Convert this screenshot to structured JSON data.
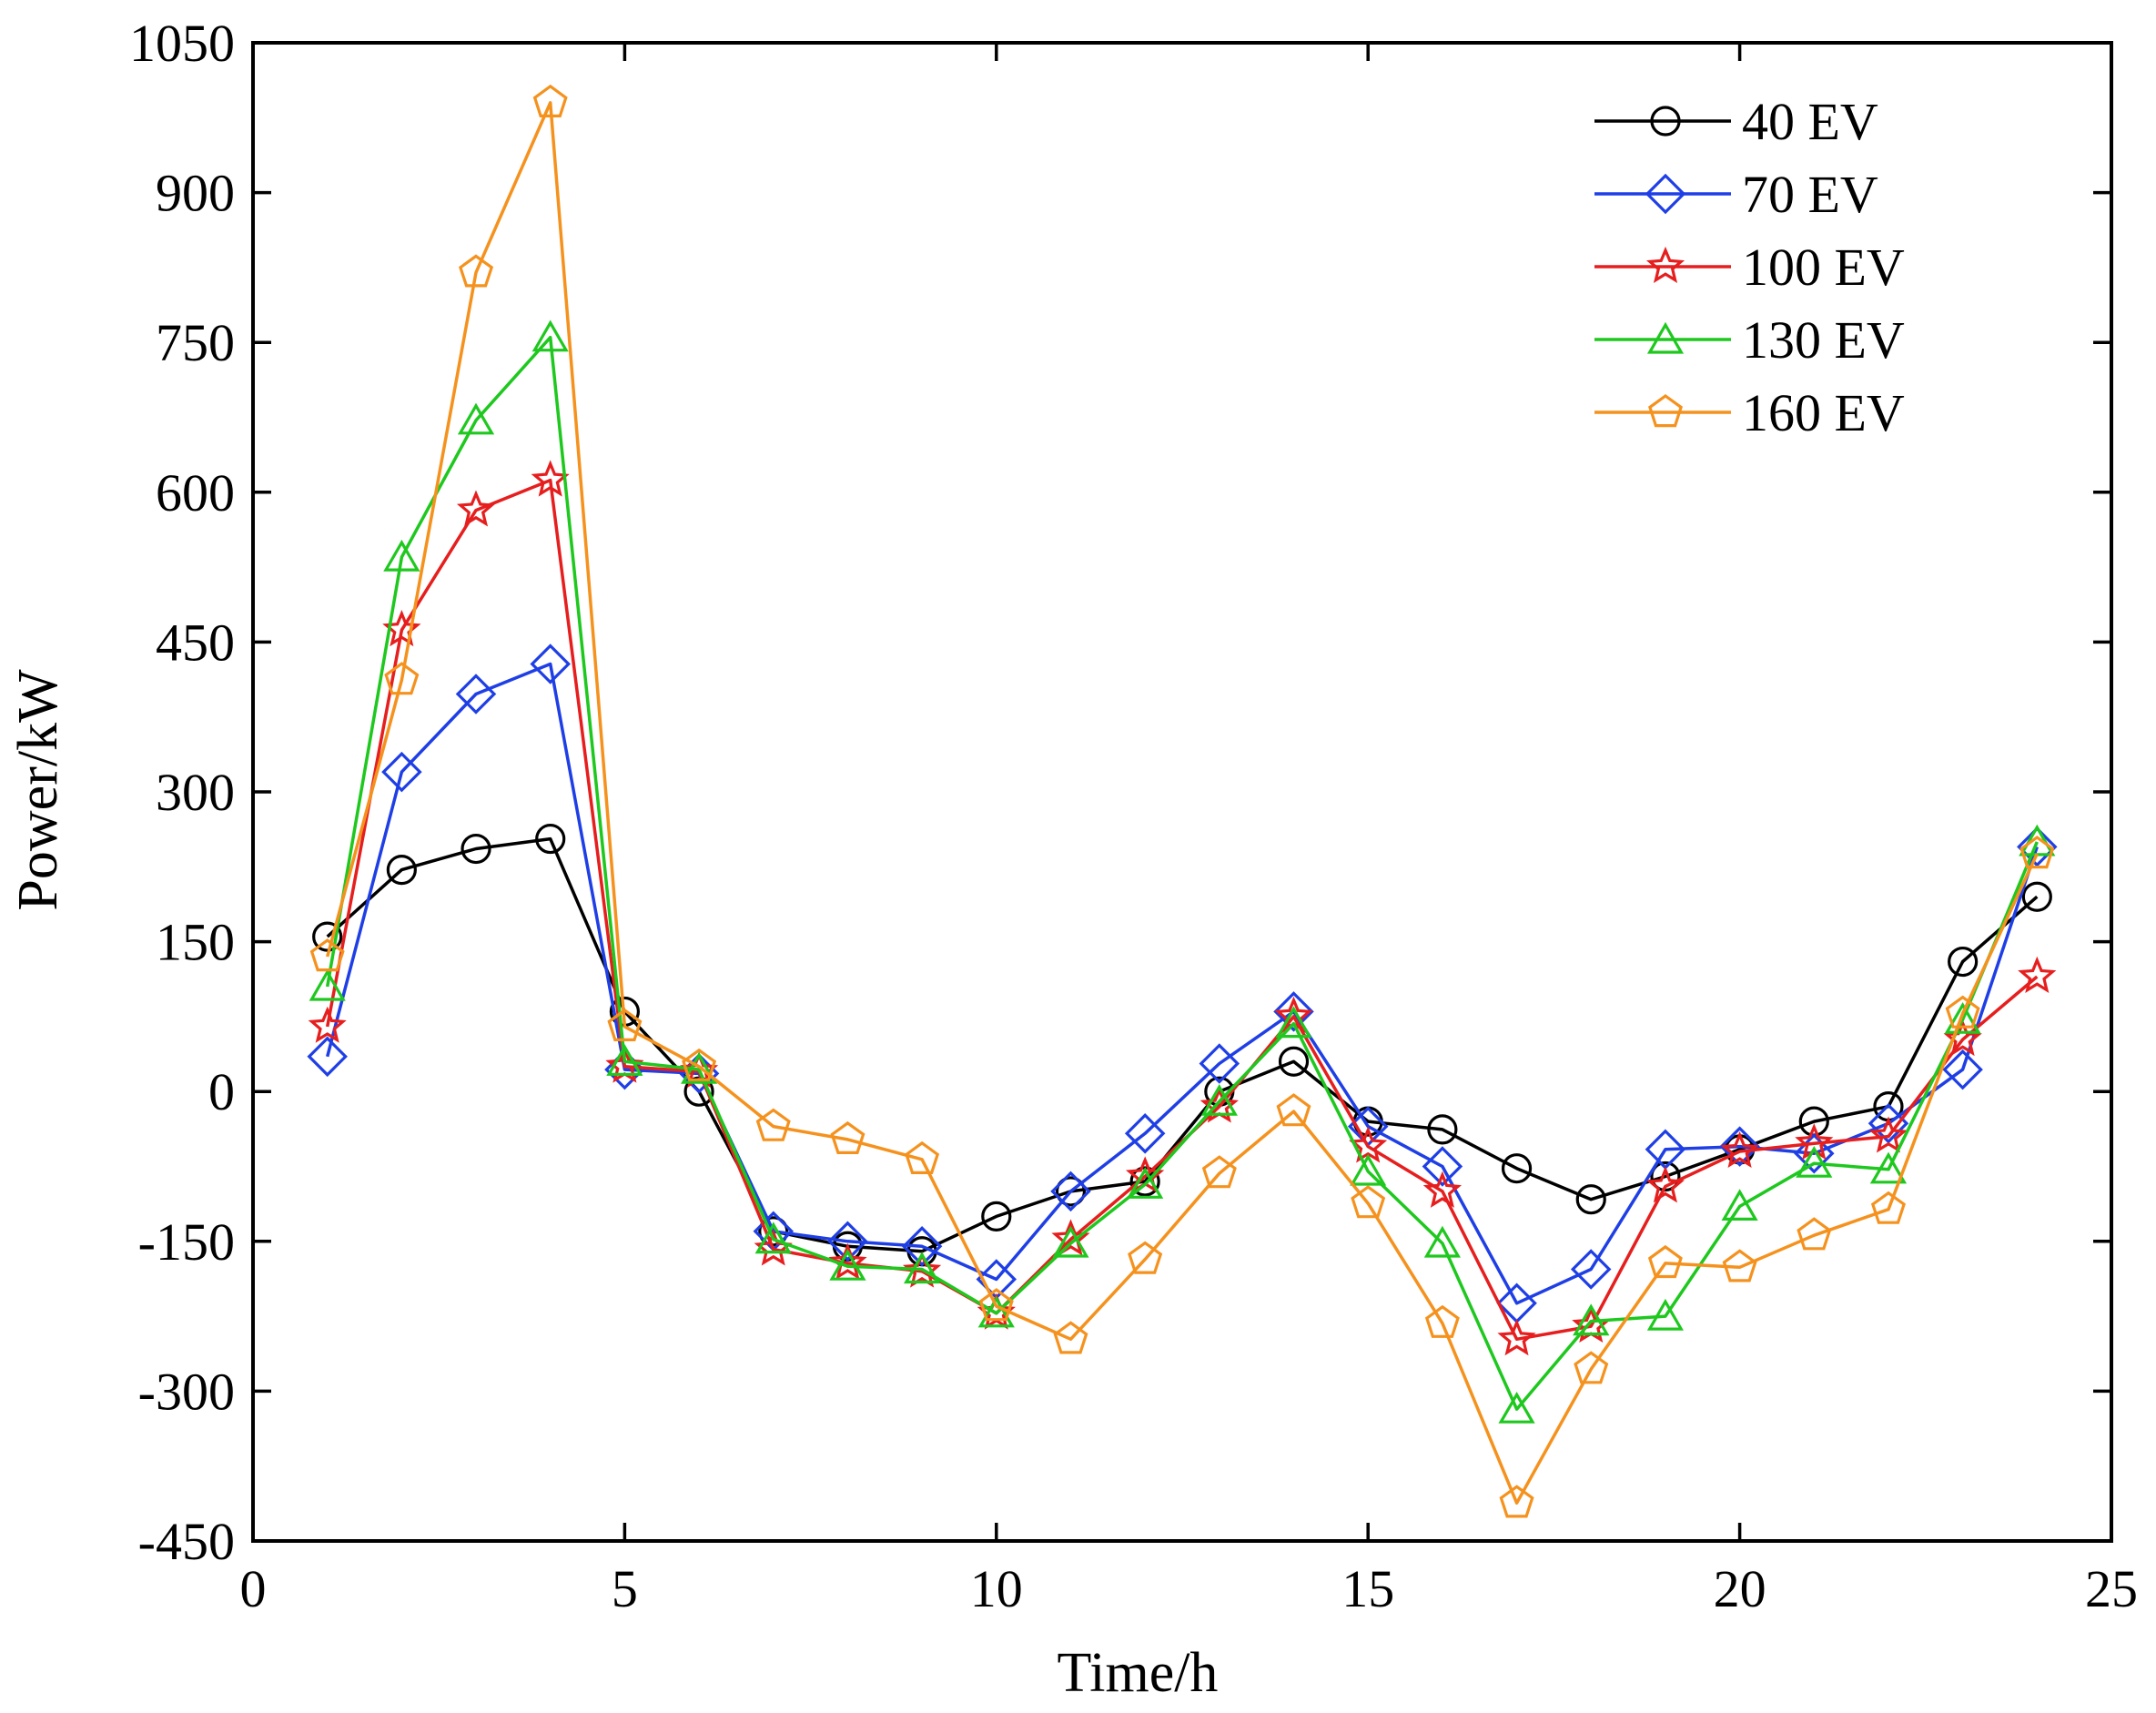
{
  "chart_data": {
    "type": "line",
    "title": "",
    "xlabel": "Time/h",
    "ylabel": "Power/kW",
    "xlim": [
      0,
      25
    ],
    "ylim": [
      -450,
      1050
    ],
    "xticks": [
      0,
      5,
      10,
      15,
      20,
      25
    ],
    "yticks": [
      -450,
      -300,
      -150,
      0,
      150,
      300,
      450,
      600,
      750,
      900,
      1050
    ],
    "grid": false,
    "legend_position": "top-right",
    "x": [
      1,
      2,
      3,
      4,
      5,
      6,
      7,
      8,
      9,
      10,
      11,
      12,
      13,
      14,
      15,
      16,
      17,
      18,
      19,
      20,
      21,
      22,
      23,
      24
    ],
    "series": [
      {
        "name": "40 EV",
        "color": "#000000",
        "marker": "circle",
        "values": [
          155,
          222,
          243,
          253,
          80,
          0,
          -140,
          -155,
          -160,
          -125,
          -100,
          -90,
          0,
          30,
          -30,
          -38,
          -77,
          -108,
          -85,
          -58,
          -30,
          -15,
          130,
          195
        ]
      },
      {
        "name": "70 EV",
        "color": "#1f3fe6",
        "marker": "diamond",
        "values": [
          35,
          320,
          398,
          428,
          22,
          18,
          -140,
          -150,
          -155,
          -188,
          -100,
          -42,
          28,
          80,
          -35,
          -75,
          -212,
          -178,
          -58,
          -55,
          -62,
          -32,
          22,
          245
        ]
      },
      {
        "name": "100 EV",
        "color": "#e61e1e",
        "marker": "star",
        "values": [
          65,
          462,
          582,
          612,
          25,
          20,
          -158,
          -172,
          -180,
          -222,
          -148,
          -85,
          -15,
          75,
          -55,
          -100,
          -248,
          -235,
          -95,
          -60,
          -52,
          -45,
          52,
          115
        ]
      },
      {
        "name": "130 EV",
        "color": "#1ec81e",
        "marker": "triangle",
        "values": [
          105,
          535,
          672,
          755,
          30,
          22,
          -148,
          -175,
          -178,
          -222,
          -152,
          -93,
          -10,
          68,
          -80,
          -152,
          -318,
          -230,
          -225,
          -115,
          -72,
          -78,
          72,
          250
        ]
      },
      {
        "name": "160 EV",
        "color": "#f5921e",
        "marker": "pentagon",
        "values": [
          135,
          412,
          820,
          990,
          65,
          25,
          -35,
          -48,
          -68,
          -215,
          -248,
          -168,
          -82,
          -20,
          -112,
          -232,
          -412,
          -278,
          -172,
          -176,
          -144,
          -118,
          78,
          238
        ]
      }
    ]
  }
}
